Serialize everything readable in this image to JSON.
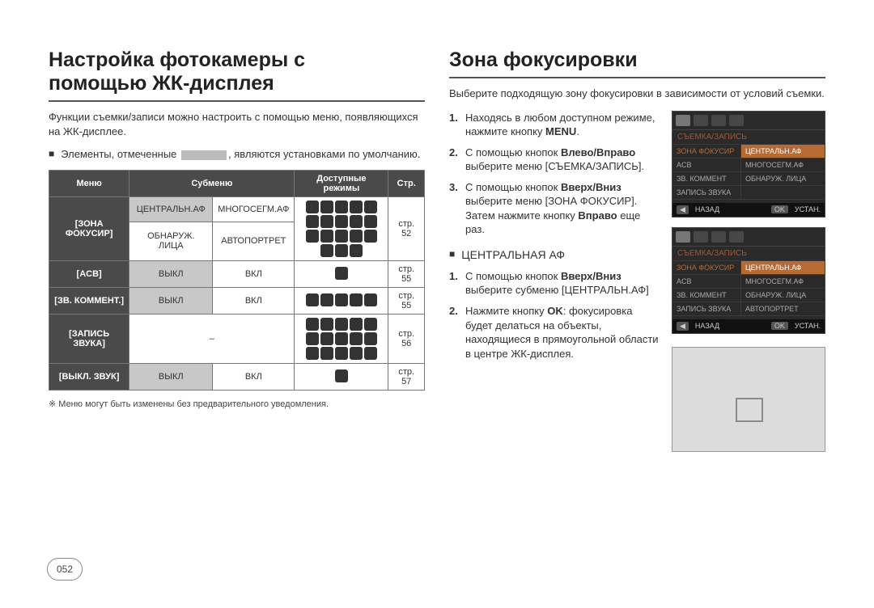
{
  "left": {
    "title_line1": "Настройка фотокамеры с",
    "title_line2": "помощью ЖК-дисплея",
    "description": "Функции съемки/записи можно настроить с помощью меню, появляющихся на ЖК-дисплее.",
    "bullet_pre": "Элементы, отмеченные",
    "bullet_post": ", являются установками по умолчанию.",
    "table": {
      "headers": [
        "Меню",
        "Субменю",
        "Доступные режимы",
        "Стр."
      ],
      "row_focus_label": "[ЗОНА ФОКУСИР]",
      "focus_sub": [
        "ЦЕНТРАЛЬН.АФ",
        "МНОГОСЕГМ.АФ",
        "ОБНАРУЖ. ЛИЦА",
        "АВТОПОРТРЕТ"
      ],
      "focus_page": "стр. 52",
      "row_acb_label": "[ACB]",
      "acb_sub": [
        "ВЫКЛ",
        "ВКЛ"
      ],
      "acb_page": "стр. 55",
      "row_comm_label": "[ЗВ. КОММЕНТ.]",
      "comm_sub": [
        "ВЫКЛ",
        "ВКЛ"
      ],
      "comm_page": "стр. 55",
      "row_rec_label": "[ЗАПИСЬ ЗВУКА]",
      "rec_sub": "–",
      "rec_page": "стр. 56",
      "row_mute_label": "[ВЫКЛ. ЗВУК]",
      "mute_sub": [
        "ВЫКЛ",
        "ВКЛ"
      ],
      "mute_page": "стр. 57"
    },
    "footnote": "Меню могут быть изменены без предварительного уведомления.",
    "footnote_marker": "※"
  },
  "right": {
    "title": "Зона фокусировки",
    "description": "Выберите подходящую зону фокусировки в зависимости от условий съемки.",
    "steps_a": [
      {
        "n": "1.",
        "pre": "Находясь в любом доступном режиме, нажмите кнопку ",
        "bold": "MENU",
        "post": "."
      },
      {
        "n": "2.",
        "pre": "С помощью кнопок ",
        "bold": "Влево/Вправо",
        "post": " выберите меню [СЪЕМКА/ЗАПИСЬ]."
      },
      {
        "n": "3.",
        "pre": "С помощью кнопок ",
        "bold": "Вверх/Вниз",
        "post": " выберите меню [ЗОНА ФОКУСИР]. Затем нажмите кнопку ",
        "bold2": "Вправо",
        "post2": " еще раз."
      }
    ],
    "subheading": "ЦЕНТРАЛЬНАЯ АФ",
    "steps_b": [
      {
        "n": "1.",
        "pre": "С помощью кнопок ",
        "bold": "Вверх/Вниз",
        "post": " выберите субменю [ЦЕНТРАЛЬН.АФ]"
      },
      {
        "n": "2.",
        "pre": "Нажмите кнопку ",
        "bold": "OK",
        "post": ": фокусировка будет делаться на объекты, находящиеся в прямоугольной области в центре ЖК-дисплея."
      }
    ],
    "screen": {
      "section_title": "СЪЕМКА/ЗАПИСЬ",
      "menu_items": [
        "ЗОНА ФОКУСИР",
        "ACB",
        "ЗВ. КОММЕНТ",
        "ЗАПИСЬ ЗВУКА"
      ],
      "options": [
        "ЦЕНТРАЛЬН.АФ",
        "МНОГОСЕГМ.АФ",
        "ОБНАРУЖ. ЛИЦА",
        "АВТОПОРТРЕТ"
      ],
      "foot_back_key": "◀",
      "foot_back": "НАЗАД",
      "foot_ok_key": "OK",
      "foot_ok": "УСТАН."
    }
  },
  "page_number": "052",
  "colors": {
    "header_bg": "#4a4a4a",
    "default_bg": "#c8c8c8",
    "screen_bg": "#2a2a2a",
    "accent": "#b86a35"
  }
}
